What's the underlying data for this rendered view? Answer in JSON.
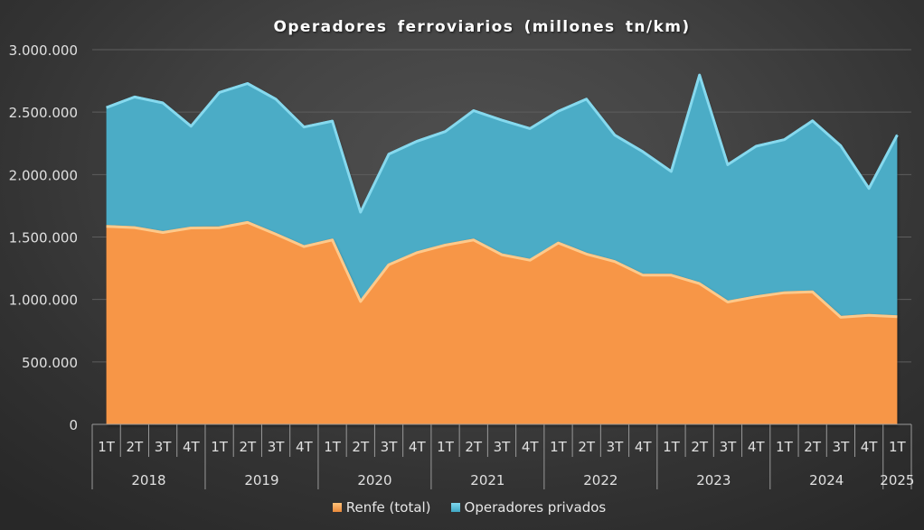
{
  "chart_data": {
    "type": "area",
    "stacked": true,
    "title": "Operadores ferroviarios (millones tn/km)",
    "xlabel": "",
    "ylabel": "",
    "ylim": [
      0,
      3000000
    ],
    "yticks": [
      0,
      500000,
      1000000,
      1500000,
      2000000,
      2500000,
      3000000
    ],
    "ytick_labels": [
      "0",
      "500.000",
      "1.000.000",
      "1.500.000",
      "2.000.000",
      "2.500.000",
      "3.000.000"
    ],
    "grid": true,
    "legend_position": "bottom",
    "categories": [
      "1T",
      "2T",
      "3T",
      "4T",
      "1T",
      "2T",
      "3T",
      "4T",
      "1T",
      "2T",
      "3T",
      "4T",
      "1T",
      "2T",
      "3T",
      "4T",
      "1T",
      "2T",
      "3T",
      "4T",
      "1T",
      "2T",
      "3T",
      "4T",
      "1T",
      "2T",
      "3T",
      "4T",
      "1T"
    ],
    "year_groups": [
      {
        "label": "2018",
        "count": 4
      },
      {
        "label": "2019",
        "count": 4
      },
      {
        "label": "2020",
        "count": 4
      },
      {
        "label": "2021",
        "count": 4
      },
      {
        "label": "2022",
        "count": 4
      },
      {
        "label": "2023",
        "count": 4
      },
      {
        "label": "2024",
        "count": 4
      },
      {
        "label": "2025",
        "count": 1
      }
    ],
    "series": [
      {
        "name": "Renfe (total)",
        "color": "#F79646",
        "values": [
          1596000,
          1586000,
          1547000,
          1583000,
          1585000,
          1627000,
          1533000,
          1434000,
          1487000,
          995000,
          1289000,
          1386000,
          1446000,
          1487000,
          1369000,
          1325000,
          1463000,
          1374000,
          1314000,
          1205000,
          1205000,
          1138000,
          990000,
          1032000,
          1065000,
          1072000,
          868000,
          884000,
          873000
        ]
      },
      {
        "name": "Operadores privados",
        "color": "#4BACC6",
        "values": [
          951000,
          1046000,
          1037000,
          815000,
          1083000,
          1113000,
          1082000,
          957000,
          952000,
          715000,
          885000,
          892000,
          909000,
          1036000,
          1077000,
          1054000,
          1055000,
          1241000,
          1012000,
          988000,
          831000,
          1670000,
          1100000,
          1205000,
          1225000,
          1369000,
          1374000,
          1016000,
          1455000
        ]
      }
    ]
  }
}
